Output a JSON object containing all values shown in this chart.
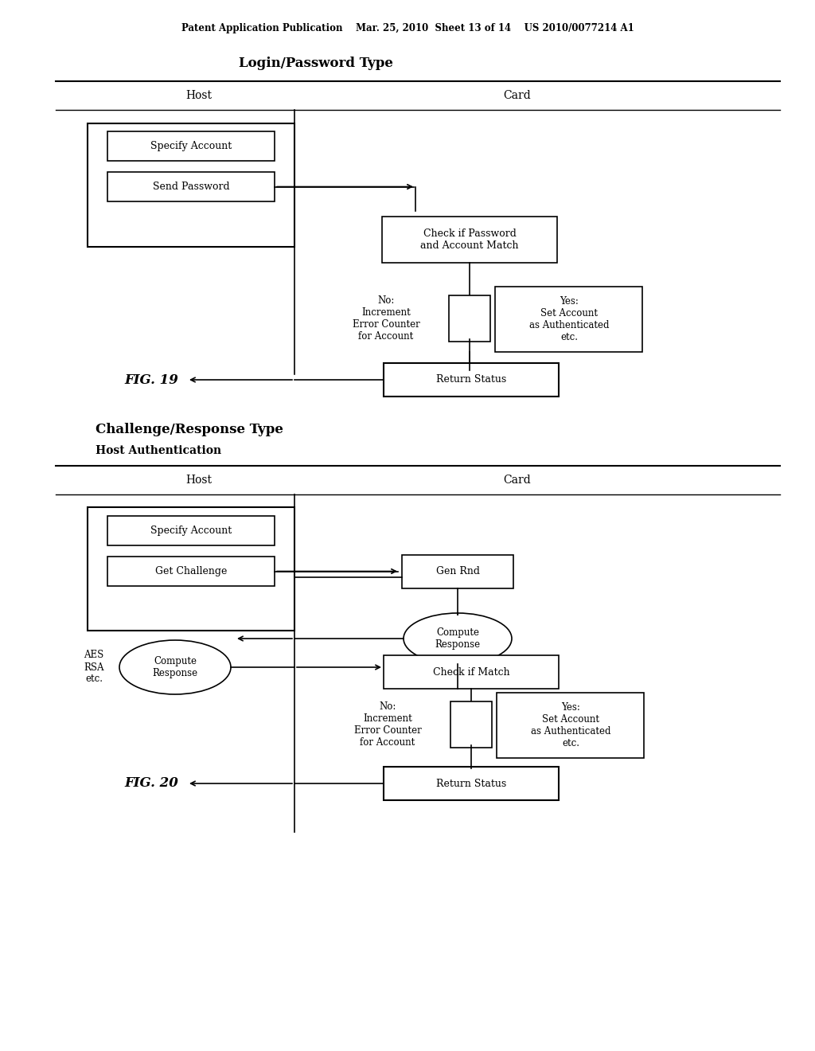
{
  "background_color": "#ffffff",
  "header_text": "Patent Application Publication    Mar. 25, 2010  Sheet 13 of 14    US 2010/0077214 A1",
  "fig1_title": "Login/Password Type",
  "fig1_host_label": "Host",
  "fig1_card_label": "Card",
  "fig1_box1_text": "Specify Account",
  "fig1_box2_text": "Send Password",
  "fig1_check_box_text": "Check if Password\nand Account Match",
  "fig1_no_text": "No:\nIncrement\nError Counter\nfor Account",
  "fig1_yes_box_text": "Yes:\nSet Account\nas Authenticated\netc.",
  "fig1_return_text": "Return Status",
  "fig1_label": "FIG. 19",
  "fig2_title": "Challenge/Response Type",
  "fig2_subtitle": "Host Authentication",
  "fig2_host_label": "Host",
  "fig2_card_label": "Card",
  "fig2_box1_text": "Specify Account",
  "fig2_box2_text": "Get Challenge",
  "fig2_gen_rnd_text": "Gen Rnd",
  "fig2_compute_response_host_text": "Compute\nResponse",
  "fig2_compute_response_card_text": "Compute\nResponse",
  "fig2_aes_text": "AES\nRSA\netc.",
  "fig2_check_match_text": "Check if Match",
  "fig2_no_text": "No:\nIncrement\nError Counter\nfor Account",
  "fig2_yes_box_text": "Yes:\nSet Account\nas Authenticated\netc.",
  "fig2_return_text": "Return Status",
  "fig2_label": "FIG. 20"
}
